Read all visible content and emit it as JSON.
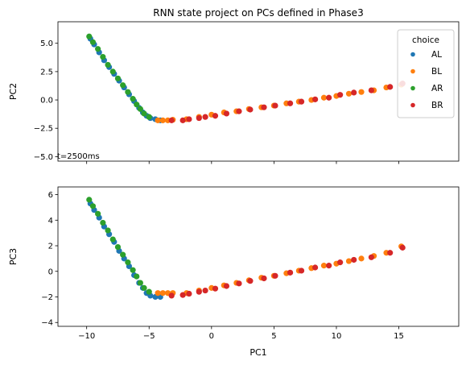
{
  "chart_data": {
    "type": "scatter",
    "title": "RNN state project on PCs defined in Phase3",
    "annotation": "t=2500ms",
    "legend": {
      "title": "choice",
      "placement": "top-right",
      "entries": [
        {
          "name": "AL",
          "color": "#1f77b4"
        },
        {
          "name": "BL",
          "color": "#ff7f0e"
        },
        {
          "name": "AR",
          "color": "#2ca02c"
        },
        {
          "name": "BR",
          "color": "#d62728"
        }
      ]
    },
    "xlabel": "PC1",
    "xlim": [
      -12.3,
      19.8
    ],
    "xticks": [
      -10,
      -5,
      0,
      5,
      10,
      15
    ],
    "xtick_labels": [
      "−10",
      "−5",
      "0",
      "5",
      "10",
      "15"
    ],
    "panels": [
      {
        "ylabel": "PC2",
        "ylim": [
          -5.4,
          6.9
        ],
        "yticks": [
          -5.0,
          -2.5,
          0.0,
          2.5,
          5.0
        ],
        "ytick_labels": [
          "−5.0",
          "−2.5",
          "0.0",
          "2.5",
          "5.0"
        ],
        "show_x_tick_labels": false,
        "series": [
          {
            "name": "AL",
            "color": "#1f77b4",
            "x": [
              -9.7,
              -9.4,
              -9.0,
              -8.6,
              -8.2,
              -7.8,
              -7.4,
              -7.0,
              -6.6,
              -6.2,
              -5.8,
              -5.5,
              -5.2,
              -4.9,
              -4.5,
              -4.1
            ],
            "y": [
              5.4,
              4.9,
              4.2,
              3.5,
              2.9,
              2.3,
              1.7,
              1.1,
              0.5,
              -0.1,
              -0.7,
              -1.1,
              -1.4,
              -1.6,
              -1.7,
              -1.8
            ]
          },
          {
            "name": "BL",
            "color": "#ff7f0e",
            "x": [
              -4.3,
              -3.9,
              -3.5,
              -3.1,
              -2.0,
              -1.0,
              0.0,
              1.0,
              2.0,
              3.0,
              4.0,
              5.0,
              6.0,
              7.0,
              8.0,
              9.0,
              10.0,
              11.0,
              12.0,
              13.0,
              14.0,
              15.2
            ],
            "y": [
              -1.8,
              -1.8,
              -1.8,
              -1.75,
              -1.7,
              -1.5,
              -1.3,
              -1.1,
              -1.0,
              -0.8,
              -0.65,
              -0.5,
              -0.3,
              -0.15,
              0.0,
              0.2,
              0.35,
              0.55,
              0.7,
              0.85,
              1.1,
              1.35
            ]
          },
          {
            "name": "AR",
            "color": "#2ca02c",
            "x": [
              -9.8,
              -9.5,
              -9.1,
              -8.7,
              -8.3,
              -7.9,
              -7.5,
              -7.1,
              -6.7,
              -6.3,
              -6.0,
              -5.7,
              -5.4,
              -5.0
            ],
            "y": [
              5.6,
              5.1,
              4.5,
              3.8,
              3.1,
              2.5,
              1.9,
              1.3,
              0.7,
              0.1,
              -0.4,
              -0.8,
              -1.2,
              -1.5
            ]
          },
          {
            "name": "BR",
            "color": "#d62728",
            "x": [
              -3.2,
              -2.3,
              -1.8,
              -1.0,
              -0.5,
              0.3,
              1.2,
              2.2,
              3.1,
              4.2,
              5.1,
              6.3,
              7.2,
              8.3,
              9.4,
              10.3,
              11.4,
              12.8,
              14.3,
              15.3
            ],
            "y": [
              -1.8,
              -1.8,
              -1.7,
              -1.6,
              -1.5,
              -1.4,
              -1.2,
              -1.0,
              -0.85,
              -0.65,
              -0.5,
              -0.3,
              -0.15,
              0.05,
              0.2,
              0.45,
              0.65,
              0.85,
              1.15,
              1.45
            ]
          }
        ]
      },
      {
        "ylabel": "PC3",
        "ylim": [
          -4.3,
          6.6
        ],
        "yticks": [
          -4,
          -2,
          0,
          2,
          4,
          6
        ],
        "ytick_labels": [
          "−4",
          "−2",
          "0",
          "2",
          "4",
          "6"
        ],
        "show_x_tick_labels": true,
        "series": [
          {
            "name": "AL",
            "color": "#1f77b4",
            "x": [
              -9.7,
              -9.4,
              -9.0,
              -8.6,
              -8.2,
              -7.8,
              -7.4,
              -7.0,
              -6.6,
              -6.2,
              -5.8,
              -5.5,
              -5.2,
              -4.9,
              -4.5,
              -4.1
            ],
            "y": [
              5.3,
              4.8,
              4.2,
              3.5,
              2.9,
              2.3,
              1.6,
              1.0,
              0.4,
              -0.3,
              -0.9,
              -1.3,
              -1.7,
              -1.9,
              -2.0,
              -2.0
            ]
          },
          {
            "name": "BL",
            "color": "#ff7f0e",
            "x": [
              -4.3,
              -3.9,
              -3.5,
              -3.1,
              -2.0,
              -1.0,
              0.0,
              1.0,
              2.0,
              3.0,
              4.0,
              5.0,
              6.0,
              7.0,
              8.0,
              9.0,
              10.0,
              11.0,
              12.0,
              13.0,
              14.0,
              15.2
            ],
            "y": [
              -1.7,
              -1.7,
              -1.7,
              -1.7,
              -1.7,
              -1.5,
              -1.3,
              -1.1,
              -0.9,
              -0.7,
              -0.5,
              -0.35,
              -0.15,
              0.05,
              0.25,
              0.45,
              0.6,
              0.8,
              1.0,
              1.2,
              1.45,
              1.95
            ]
          },
          {
            "name": "AR",
            "color": "#2ca02c",
            "x": [
              -9.8,
              -9.5,
              -9.1,
              -8.7,
              -8.3,
              -7.9,
              -7.5,
              -7.1,
              -6.7,
              -6.3,
              -6.0,
              -5.7,
              -5.4,
              -5.0
            ],
            "y": [
              5.6,
              5.1,
              4.5,
              3.8,
              3.2,
              2.5,
              1.9,
              1.3,
              0.7,
              0.1,
              -0.4,
              -0.9,
              -1.3,
              -1.6
            ]
          },
          {
            "name": "BR",
            "color": "#d62728",
            "x": [
              -3.2,
              -2.3,
              -1.8,
              -1.0,
              -0.5,
              0.3,
              1.2,
              2.2,
              3.1,
              4.2,
              5.1,
              6.3,
              7.2,
              8.3,
              9.4,
              10.3,
              11.4,
              12.8,
              14.3,
              15.3
            ],
            "y": [
              -1.9,
              -1.85,
              -1.75,
              -1.6,
              -1.5,
              -1.35,
              -1.15,
              -0.95,
              -0.75,
              -0.55,
              -0.35,
              -0.1,
              0.05,
              0.3,
              0.45,
              0.7,
              0.9,
              1.1,
              1.45,
              1.85
            ]
          }
        ]
      }
    ]
  }
}
